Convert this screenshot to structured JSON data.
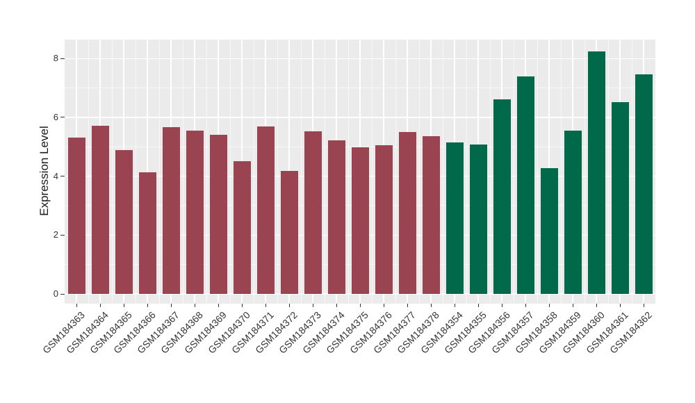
{
  "chart_data": {
    "type": "bar",
    "title": "",
    "xlabel": "",
    "ylabel": "Expression Level",
    "legend": "none",
    "grid": true,
    "panel_bg": "#EBEBEB",
    "grid_major_color": "#FFFFFF",
    "grid_minor_color": "rgba(255,255,255,0.6)",
    "tick_color": "#333333",
    "tick_label_color": "#333333",
    "axis_title_color": "#1A1A1A",
    "group_colors": {
      "maroon": "#9B4451",
      "green": "#00694A"
    },
    "categories": [
      "GSM184363",
      "GSM184364",
      "GSM184365",
      "GSM184366",
      "GSM184367",
      "GSM184368",
      "GSM184369",
      "GSM184370",
      "GSM184371",
      "GSM184372",
      "GSM184373",
      "GSM184374",
      "GSM184375",
      "GSM184376",
      "GSM184377",
      "GSM184378",
      "GSM184354",
      "GSM184355",
      "GSM184356",
      "GSM184357",
      "GSM184358",
      "GSM184359",
      "GSM184360",
      "GSM184361",
      "GSM184362"
    ],
    "values": [
      5.31,
      5.72,
      4.88,
      4.14,
      5.66,
      5.56,
      5.41,
      4.5,
      5.68,
      4.18,
      5.52,
      5.23,
      4.99,
      5.06,
      5.49,
      5.35,
      5.15,
      5.08,
      6.6,
      7.38,
      4.28,
      5.56,
      8.25,
      6.52,
      7.46
    ],
    "bar_groups": [
      "maroon",
      "maroon",
      "maroon",
      "maroon",
      "maroon",
      "maroon",
      "maroon",
      "maroon",
      "maroon",
      "maroon",
      "maroon",
      "maroon",
      "maroon",
      "maroon",
      "maroon",
      "maroon",
      "green",
      "green",
      "green",
      "green",
      "green",
      "green",
      "green",
      "green",
      "green"
    ],
    "yticks": [
      "0",
      "2",
      "4",
      "6",
      "8"
    ],
    "minor_yticks": [
      1,
      3,
      5,
      7
    ],
    "ylim": [
      0,
      8.65
    ]
  }
}
